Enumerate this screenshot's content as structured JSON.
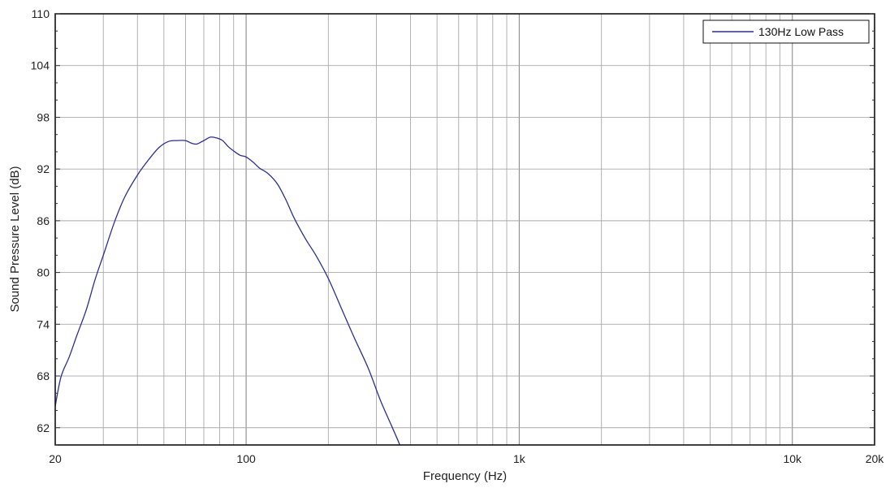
{
  "chart_data": {
    "type": "line",
    "xscale": "log",
    "xlim": [
      20,
      20000
    ],
    "ylim": [
      60,
      110
    ],
    "grid": true,
    "xlabel": "Frequency (Hz)",
    "ylabel": "Sound Pressure Level (dB)",
    "xticks": [
      {
        "value": 20,
        "label": "20"
      },
      {
        "value": 100,
        "label": "100"
      },
      {
        "value": 1000,
        "label": "1k"
      },
      {
        "value": 10000,
        "label": "10k"
      },
      {
        "value": 20000,
        "label": "20k"
      }
    ],
    "yticks": [
      {
        "value": 62,
        "label": "62"
      },
      {
        "value": 68,
        "label": "68"
      },
      {
        "value": 74,
        "label": "74"
      },
      {
        "value": 80,
        "label": "80"
      },
      {
        "value": 86,
        "label": "86"
      },
      {
        "value": 92,
        "label": "92"
      },
      {
        "value": 98,
        "label": "98"
      },
      {
        "value": 104,
        "label": "104"
      },
      {
        "value": 110,
        "label": "110"
      }
    ],
    "legend_position": "top-right",
    "series": [
      {
        "name": "130Hz Low Pass",
        "color": "#2b2f8f",
        "x": [
          20,
          21,
          22.5,
          24,
          26,
          28,
          30,
          33,
          36,
          40,
          44,
          48,
          52,
          56,
          60,
          63,
          66,
          70,
          74,
          78,
          82,
          86,
          90,
          95,
          100,
          106,
          112,
          120,
          130,
          140,
          150,
          165,
          180,
          200,
          225,
          250,
          280,
          310,
          340,
          360,
          365
        ],
        "y": [
          64.5,
          67.9,
          70.2,
          72.7,
          75.7,
          79.2,
          82.0,
          85.9,
          88.8,
          91.3,
          93.1,
          94.5,
          95.2,
          95.3,
          95.3,
          95.0,
          94.9,
          95.3,
          95.7,
          95.6,
          95.3,
          94.6,
          94.1,
          93.6,
          93.4,
          92.8,
          92.1,
          91.5,
          90.3,
          88.4,
          86.3,
          83.9,
          82.0,
          79.3,
          75.6,
          72.3,
          68.9,
          65.2,
          62.3,
          60.5,
          60.0
        ]
      }
    ]
  }
}
